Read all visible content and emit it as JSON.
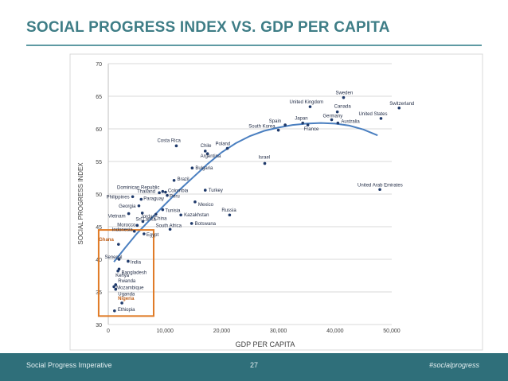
{
  "slide": {
    "title": "SOCIAL PROGRESS INDEX VS. GDP PER CAPITA",
    "footer_left": "Social Progress Imperative",
    "page_number": "27",
    "footer_right": "#socialprogress"
  },
  "colors": {
    "title": "#3e7d86",
    "points": "#1f3a6b",
    "trend": "#4a7fc0",
    "highlight_box": "#e07a25",
    "highlight_label": "#c0601a",
    "footer_bg": "#2f6f7a"
  },
  "chart_data": {
    "type": "scatter",
    "xlabel": "GDP PER CAPITA",
    "ylabel": "SOCIAL PROGRESS INDEX",
    "xlim": [
      0,
      50000
    ],
    "ylim": [
      30,
      70
    ],
    "x_ticks": [
      0,
      10000,
      20000,
      30000,
      40000,
      50000
    ],
    "x_tick_labels": [
      "0",
      "10,000",
      "20,000",
      "30,000",
      "40,000",
      "50,000"
    ],
    "y_ticks": [
      30,
      35,
      40,
      45,
      50,
      55,
      60,
      65,
      70
    ],
    "y_tick_labels": [
      "30",
      "35",
      "40",
      "45",
      "50",
      "55",
      "60",
      "65",
      "70"
    ],
    "grid": "horizontal",
    "points": [
      {
        "label": "Sweden",
        "x": 41500,
        "y": 64.8
      },
      {
        "label": "United Kingdom",
        "x": 35600,
        "y": 63.4
      },
      {
        "label": "Switzerland",
        "x": 51300,
        "y": 63.2
      },
      {
        "label": "Canada",
        "x": 40400,
        "y": 62.6
      },
      {
        "label": "United States",
        "x": 48100,
        "y": 61.6
      },
      {
        "label": "Germany",
        "x": 39400,
        "y": 61.4
      },
      {
        "label": "Japan",
        "x": 34300,
        "y": 60.9
      },
      {
        "label": "Australia",
        "x": 40500,
        "y": 60.9
      },
      {
        "label": "Spain",
        "x": 31200,
        "y": 60.6
      },
      {
        "label": "France",
        "x": 35200,
        "y": 60.6
      },
      {
        "label": "South Korea",
        "x": 30000,
        "y": 59.8
      },
      {
        "label": "Poland",
        "x": 21000,
        "y": 57.0
      },
      {
        "label": "Costa Rica",
        "x": 12000,
        "y": 57.4
      },
      {
        "label": "Chile",
        "x": 17100,
        "y": 56.6
      },
      {
        "label": "Argentina",
        "x": 17500,
        "y": 56.2
      },
      {
        "label": "Israel",
        "x": 27600,
        "y": 54.7
      },
      {
        "label": "Bulgaria",
        "x": 14800,
        "y": 54.0
      },
      {
        "label": "Brazil",
        "x": 11600,
        "y": 52.1
      },
      {
        "label": "United Arab Emirates",
        "x": 47900,
        "y": 50.7
      },
      {
        "label": "Dominican Republic",
        "x": 9600,
        "y": 50.4
      },
      {
        "label": "Thailand",
        "x": 9000,
        "y": 50.2
      },
      {
        "label": "Colombia",
        "x": 10100,
        "y": 50.3
      },
      {
        "label": "Turkey",
        "x": 17100,
        "y": 50.6
      },
      {
        "label": "Peru",
        "x": 10400,
        "y": 49.8
      },
      {
        "label": "Philippines",
        "x": 4300,
        "y": 49.6
      },
      {
        "label": "Paraguay",
        "x": 5800,
        "y": 49.2
      },
      {
        "label": "Georgia",
        "x": 5400,
        "y": 48.2
      },
      {
        "label": "Tunisia",
        "x": 9600,
        "y": 47.6
      },
      {
        "label": "Mexico",
        "x": 15300,
        "y": 48.8
      },
      {
        "label": "Russia",
        "x": 21400,
        "y": 46.8
      },
      {
        "label": "Vietnam",
        "x": 3600,
        "y": 47.0
      },
      {
        "label": "Jordan",
        "x": 6000,
        "y": 47.1
      },
      {
        "label": "China",
        "x": 8400,
        "y": 46.9
      },
      {
        "label": "Kazakhstan",
        "x": 12800,
        "y": 46.8
      },
      {
        "label": "Sri Lanka",
        "x": 6100,
        "y": 45.8
      },
      {
        "label": "Morocco",
        "x": 5100,
        "y": 45.2
      },
      {
        "label": "Botswana",
        "x": 14700,
        "y": 45.5
      },
      {
        "label": "South Africa",
        "x": 10900,
        "y": 44.6
      },
      {
        "label": "Indonesia",
        "x": 4600,
        "y": 44.3
      },
      {
        "label": "Egypt",
        "x": 6300,
        "y": 43.9
      },
      {
        "label": "Ghana",
        "x": 1800,
        "y": 42.3
      },
      {
        "label": "Senegal",
        "x": 1900,
        "y": 40.0
      },
      {
        "label": "India",
        "x": 3500,
        "y": 39.7
      },
      {
        "label": "Bangladesh",
        "x": 1900,
        "y": 38.5
      },
      {
        "label": "Kenya",
        "x": 1700,
        "y": 38.2
      },
      {
        "label": "Rwanda",
        "x": 1300,
        "y": 36.1
      },
      {
        "label": "Mozambique",
        "x": 1000,
        "y": 35.8
      },
      {
        "label": "Uganda",
        "x": 1300,
        "y": 35.4
      },
      {
        "label": "Nigeria",
        "x": 2400,
        "y": 33.3
      },
      {
        "label": "Ethiopia",
        "x": 1100,
        "y": 32.1
      }
    ],
    "trendline": [
      [
        1000,
        39.6
      ],
      [
        3000,
        41.8
      ],
      [
        5000,
        43.9
      ],
      [
        7500,
        46.2
      ],
      [
        10000,
        48.4
      ],
      [
        12500,
        50.6
      ],
      [
        15000,
        52.6
      ],
      [
        17500,
        54.6
      ],
      [
        20000,
        56.4
      ],
      [
        22500,
        57.8
      ],
      [
        25000,
        58.9
      ],
      [
        27500,
        59.7
      ],
      [
        30000,
        60.2
      ],
      [
        32500,
        60.6
      ],
      [
        35000,
        60.8
      ],
      [
        37500,
        60.9
      ],
      [
        40000,
        60.8
      ],
      [
        42500,
        60.5
      ],
      [
        45000,
        59.9
      ],
      [
        47500,
        59.0
      ]
    ],
    "highlight_box": {
      "xlim": [
        -1700,
        8000
      ],
      "ylim": [
        31.3,
        44.5
      ]
    }
  }
}
